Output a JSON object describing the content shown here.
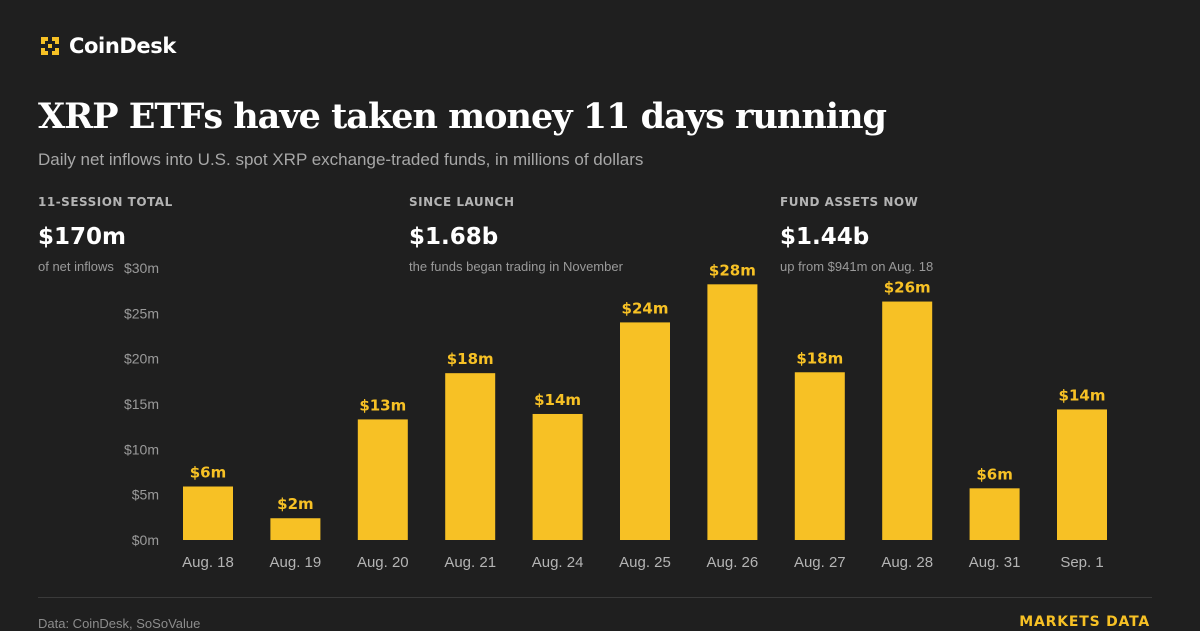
{
  "brand": {
    "name": "CoinDesk",
    "logo_icon": "coindesk-logo-icon",
    "color": "#f7c125"
  },
  "headline": "XRP ETFs have taken money 11 days running",
  "subhead": "Daily net inflows into U.S. spot XRP exchange-traded funds, in millions of dollars",
  "stats": [
    {
      "label": "11-SESSION TOTAL",
      "value": "$170m",
      "note": "of net inflows"
    },
    {
      "label": "SINCE LAUNCH",
      "value": "$1.68b",
      "note": "the funds began trading in November"
    },
    {
      "label": "FUND ASSETS NOW",
      "value": "$1.44b",
      "note": "up from $941m on Aug. 18"
    }
  ],
  "chart_data": {
    "type": "bar",
    "title": "",
    "xlabel": "",
    "ylabel": "",
    "categories": [
      "Aug. 18",
      "Aug. 19",
      "Aug. 20",
      "Aug. 21",
      "Aug. 24",
      "Aug. 25",
      "Aug. 26",
      "Aug. 27",
      "Aug. 28",
      "Aug. 31",
      "Sep. 1"
    ],
    "values": [
      5.9,
      2.4,
      13.3,
      18.4,
      13.9,
      24,
      28.2,
      18.5,
      26.3,
      5.7,
      14.4
    ],
    "data_labels": [
      "$6m",
      "$2m",
      "$13m",
      "$18m",
      "$14m",
      "$24m",
      "$28m",
      "$18m",
      "$26m",
      "$6m",
      "$14m"
    ],
    "ylim": [
      0,
      30
    ],
    "yticks": [
      0,
      5,
      10,
      15,
      20,
      25,
      30
    ],
    "ytick_labels": [
      "$0m",
      "$5m",
      "$10m",
      "$15m",
      "$20m",
      "$25m",
      "$30m"
    ],
    "grid": false,
    "legend": "none",
    "bar_color": "#f7c125"
  },
  "footer": {
    "source": "Data: CoinDesk, SoSoValue",
    "section": "MARKETS DATA"
  },
  "colors": {
    "background": "#1f1f1f",
    "accent": "#f7c125",
    "text": "#ffffff",
    "muted": "#a7a7a7"
  }
}
